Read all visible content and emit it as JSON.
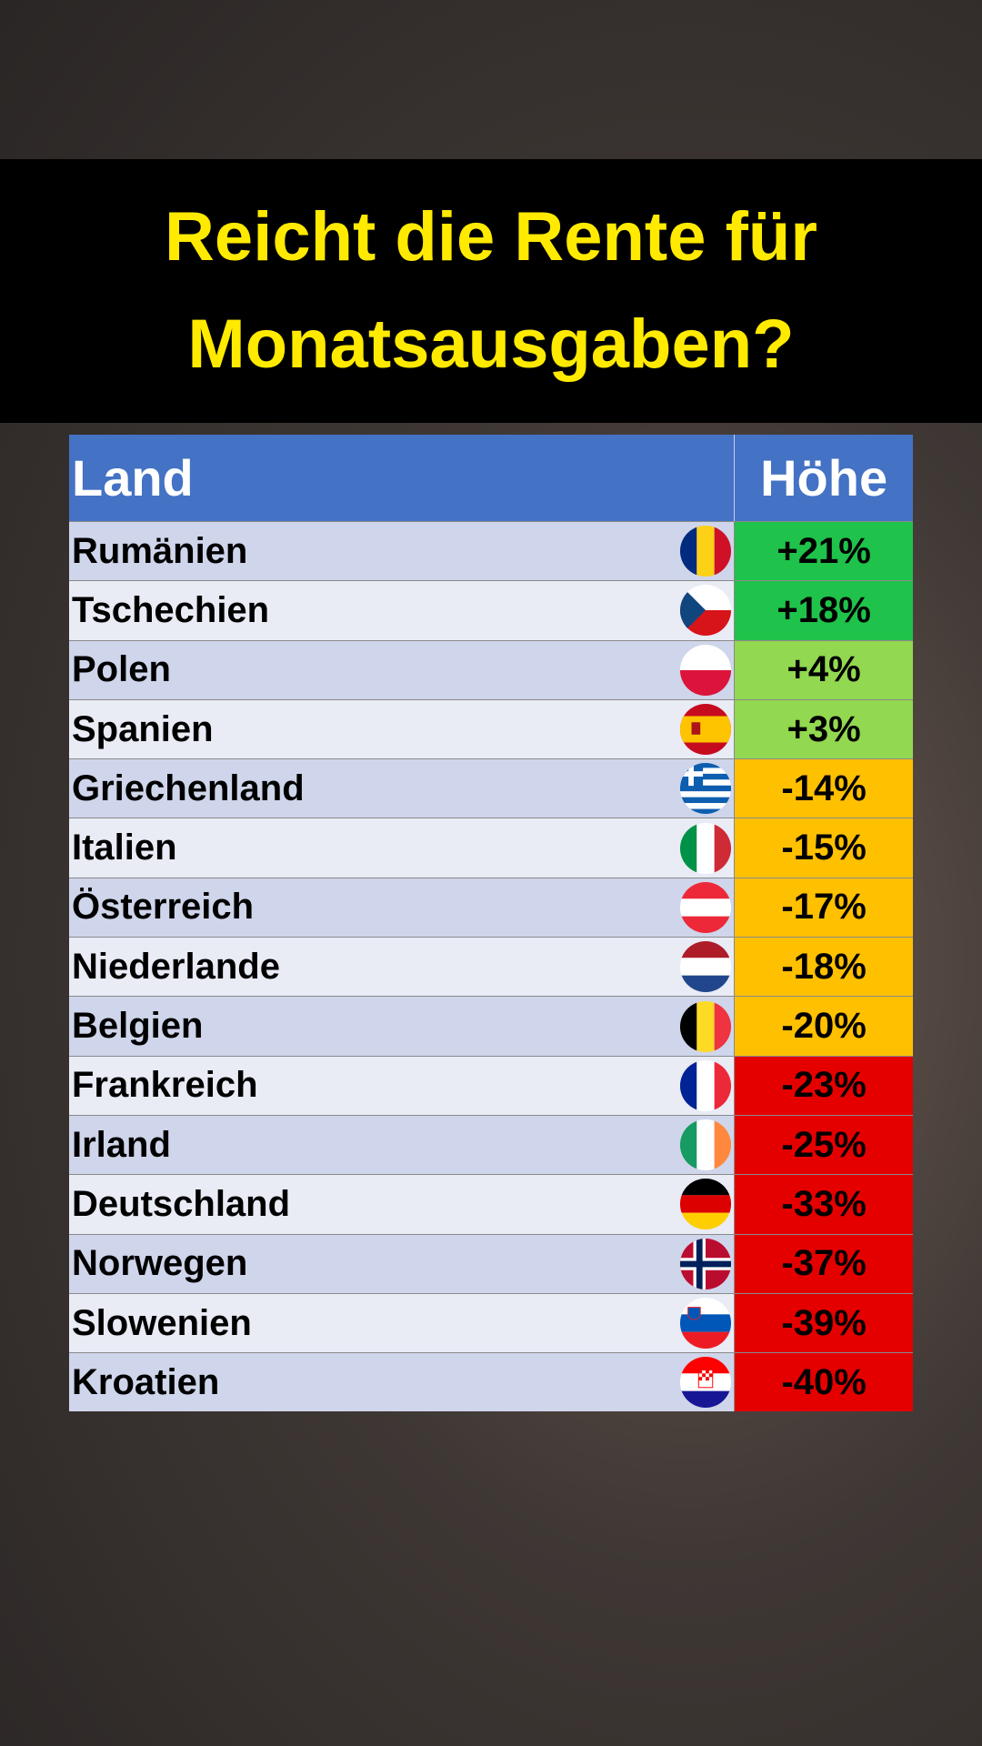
{
  "title": "Reicht die Rente für Monatsausgaben?",
  "table": {
    "header": [
      "Land",
      "Höhe"
    ],
    "rows": [
      {
        "country": "Rumänien",
        "value": "+21%",
        "color": "#1fc24a"
      },
      {
        "country": "Tschechien",
        "value": "+18%",
        "color": "#1fc24a"
      },
      {
        "country": "Polen",
        "value": "+4%",
        "color": "#92d850"
      },
      {
        "country": "Spanien",
        "value": "+3%",
        "color": "#92d850"
      },
      {
        "country": "Griechenland",
        "value": "-14%",
        "color": "#ffc000"
      },
      {
        "country": "Italien",
        "value": "-15%",
        "color": "#ffc000"
      },
      {
        "country": "Österreich",
        "value": "-17%",
        "color": "#ffc000"
      },
      {
        "country": "Niederlande",
        "value": "-18%",
        "color": "#ffc000"
      },
      {
        "country": "Belgien",
        "value": "-20%",
        "color": "#ffc000"
      },
      {
        "country": "Frankreich",
        "value": "-23%",
        "color": "#e50000"
      },
      {
        "country": "Irland",
        "value": "-25%",
        "color": "#e50000"
      },
      {
        "country": "Deutschland",
        "value": "-33%",
        "color": "#e50000"
      },
      {
        "country": "Norwegen",
        "value": "-37%",
        "color": "#e50000"
      },
      {
        "country": "Slowenien",
        "value": "-39%",
        "color": "#e50000"
      },
      {
        "country": "Kroatien",
        "value": "-40%",
        "color": "#e50000"
      }
    ]
  }
}
